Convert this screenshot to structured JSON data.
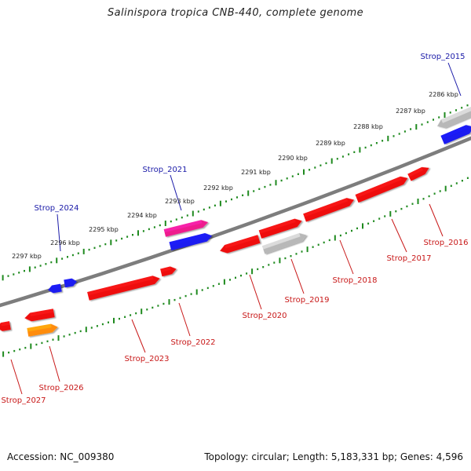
{
  "title": "Salinispora tropica CNB-440, complete genome",
  "footer": {
    "accession": "Accession: NC_009380",
    "topology": "Topology: circular; Length: 5,183,331 bp; Genes: 4,596"
  },
  "colors": {
    "backbone": "#7d7d7d",
    "ticks": "#1f8a1f",
    "label_red": "#c81818",
    "label_blue": "#1a1aa8",
    "gene_red": "#ee1111",
    "gene_blue": "#1a1af0",
    "gene_grey": "#b8b8b8",
    "gene_pink": "#ee1c8e",
    "gene_orange": "#ff8c0a"
  },
  "scale_labels": [
    "2286 kbp",
    "2287 kbp",
    "2288 kbp",
    "2289 kbp",
    "2290 kbp",
    "2291 kbp",
    "2292 kbp",
    "2293 kbp",
    "2294 kbp",
    "2295 kbp",
    "2296 kbp",
    "2297 kbp"
  ],
  "gene_labels": [
    {
      "text": "Strop_2015",
      "color": "blue"
    },
    {
      "text": "Strop_2016",
      "color": "red"
    },
    {
      "text": "Strop_2017",
      "color": "red"
    },
    {
      "text": "Strop_2018",
      "color": "red"
    },
    {
      "text": "Strop_2019",
      "color": "red"
    },
    {
      "text": "Strop_2020",
      "color": "red"
    },
    {
      "text": "Strop_2021",
      "color": "blue"
    },
    {
      "text": "Strop_2022",
      "color": "red"
    },
    {
      "text": "Strop_2023",
      "color": "red"
    },
    {
      "text": "Strop_2024",
      "color": "blue"
    },
    {
      "text": "Strop_2026",
      "color": "red"
    },
    {
      "text": "Strop_2027",
      "color": "red"
    }
  ],
  "features": [
    {
      "color": "grey",
      "direction": "reverse"
    },
    {
      "color": "blue",
      "direction": "forward"
    },
    {
      "color": "red",
      "direction": "forward"
    },
    {
      "color": "red",
      "direction": "forward"
    },
    {
      "color": "red",
      "direction": "forward"
    },
    {
      "color": "red",
      "direction": "forward"
    },
    {
      "color": "grey",
      "direction": "forward"
    },
    {
      "color": "red",
      "direction": "reverse"
    },
    {
      "color": "pink",
      "direction": "forward"
    },
    {
      "color": "blue",
      "direction": "forward"
    },
    {
      "color": "red",
      "direction": "forward"
    },
    {
      "color": "red",
      "direction": "forward"
    },
    {
      "color": "blue",
      "direction": "reverse"
    },
    {
      "color": "blue",
      "direction": "forward"
    },
    {
      "color": "red",
      "direction": "reverse"
    },
    {
      "color": "orange",
      "direction": "forward"
    },
    {
      "color": "red",
      "direction": "reverse"
    }
  ]
}
